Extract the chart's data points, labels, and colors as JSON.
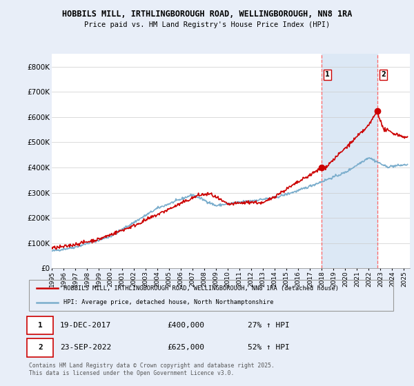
{
  "title_line1": "HOBBILS MILL, IRTHLINGBOROUGH ROAD, WELLINGBOROUGH, NN8 1RA",
  "title_line2": "Price paid vs. HM Land Registry's House Price Index (HPI)",
  "ylim": [
    0,
    850000
  ],
  "yticks": [
    0,
    100000,
    200000,
    300000,
    400000,
    500000,
    600000,
    700000,
    800000
  ],
  "ytick_labels": [
    "£0",
    "£100K",
    "£200K",
    "£300K",
    "£400K",
    "£500K",
    "£600K",
    "£700K",
    "£800K"
  ],
  "bg_color": "#e8eef8",
  "plot_bg_color": "#ffffff",
  "shade_color": "#dce8f5",
  "red_line_color": "#cc0000",
  "blue_line_color": "#7aadcc",
  "marker1_date_x": 2017.97,
  "marker1_y": 400000,
  "marker2_date_x": 2022.73,
  "marker2_y": 625000,
  "vline1_x": 2017.97,
  "vline2_x": 2022.73,
  "legend_line1": "HOBBILS MILL, IRTHLINGBOROUGH ROAD, WELLINGBOROUGH, NN8 1RA (detached house)",
  "legend_line2": "HPI: Average price, detached house, North Northamptonshire",
  "table_row1": [
    "1",
    "19-DEC-2017",
    "£400,000",
    "27% ↑ HPI"
  ],
  "table_row2": [
    "2",
    "23-SEP-2022",
    "£625,000",
    "52% ↑ HPI"
  ],
  "footnote": "Contains HM Land Registry data © Crown copyright and database right 2025.\nThis data is licensed under the Open Government Licence v3.0.",
  "xmin": 1995,
  "xmax": 2025.5,
  "xtick_years": [
    1995,
    1996,
    1997,
    1998,
    1999,
    2000,
    2001,
    2002,
    2003,
    2004,
    2005,
    2006,
    2007,
    2008,
    2009,
    2010,
    2011,
    2012,
    2013,
    2014,
    2015,
    2016,
    2017,
    2018,
    2019,
    2020,
    2021,
    2022,
    2023,
    2024,
    2025
  ]
}
